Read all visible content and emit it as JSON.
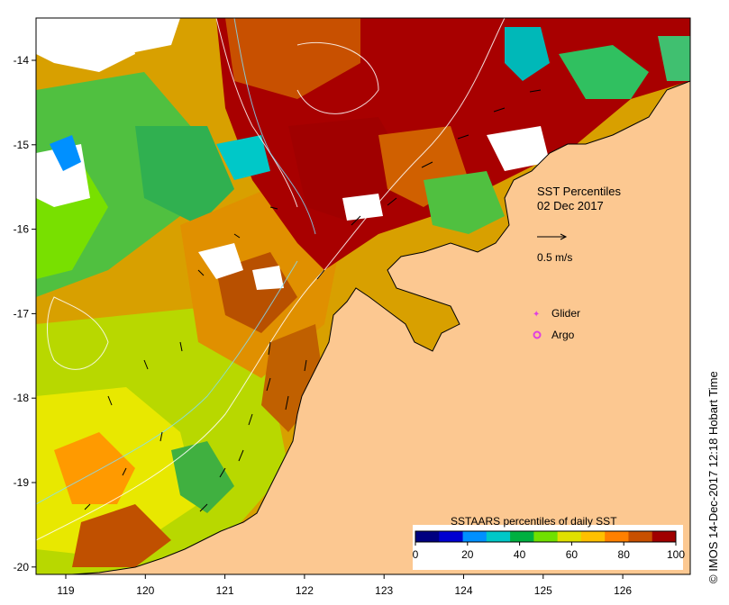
{
  "map": {
    "title_line1": "SST Percentiles",
    "title_line2": "02 Dec 2017",
    "vector_scale_label": "0.5 m/s",
    "legend": {
      "glider_label": "Glider",
      "argo_label": "Argo",
      "glider_color": "#e040e0",
      "argo_color": "#e040e0"
    },
    "colorbar": {
      "title": "SSTAARS percentiles of daily SST",
      "tick_labels": [
        "0",
        "20",
        "40",
        "60",
        "80",
        "100"
      ],
      "colors": [
        "#000080",
        "#0000d0",
        "#0090ff",
        "#00c8c8",
        "#00b040",
        "#70e000",
        "#e0e000",
        "#ffc000",
        "#ff8000",
        "#c85000",
        "#a00000"
      ]
    },
    "axes": {
      "lon_ticks": [
        "119",
        "120",
        "121",
        "122",
        "123",
        "124",
        "125",
        "126"
      ],
      "lat_ticks": [
        "-14",
        "-15",
        "-16",
        "-17",
        "-18",
        "-19",
        "-20"
      ]
    },
    "credit": "© IMOS 14-Dec-2017 12:18 Hobart Time",
    "land_color": "#fcc891"
  }
}
